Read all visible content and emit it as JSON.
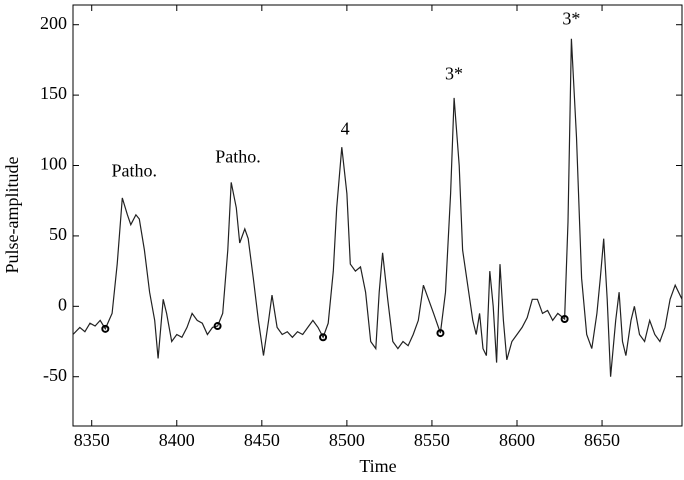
{
  "chart_data": {
    "type": "line",
    "xlabel": "Time",
    "ylabel": "Pulse-amplitude",
    "x": [
      8339,
      8343,
      8346,
      8349,
      8352,
      8355,
      8358,
      8362,
      8365,
      8368,
      8371,
      8373,
      8376,
      8378,
      8381,
      8384,
      8387,
      8389,
      8392,
      8394,
      8397,
      8400,
      8403,
      8406,
      8409,
      8412,
      8415,
      8418,
      8421,
      8424,
      8427,
      8430,
      8432,
      8435,
      8437,
      8440,
      8442,
      8445,
      8448,
      8451,
      8454,
      8456,
      8459,
      8462,
      8465,
      8468,
      8471,
      8474,
      8477,
      8480,
      8483,
      8486,
      8489,
      8492,
      8494,
      8497,
      8500,
      8502,
      8505,
      8508,
      8511,
      8514,
      8517,
      8519,
      8521,
      8524,
      8527,
      8530,
      8533,
      8536,
      8539,
      8542,
      8545,
      8548,
      8551,
      8555,
      8558,
      8561,
      8563,
      8566,
      8568,
      8571,
      8574,
      8576,
      8578,
      8580,
      8582,
      8584,
      8586,
      8588,
      8590,
      8592,
      8594,
      8597,
      8600,
      8603,
      8606,
      8609,
      8612,
      8615,
      8618,
      8621,
      8624,
      8628,
      8630,
      8632,
      8635,
      8638,
      8641,
      8644,
      8647,
      8649,
      8651,
      8653,
      8655,
      8658,
      8660,
      8662,
      8664,
      8667,
      8669,
      8672,
      8675,
      8678,
      8681,
      8684,
      8687,
      8690,
      8693,
      8697
    ],
    "series": [
      {
        "color": "#222222",
        "values": [
          -20,
          -15,
          -18,
          -12,
          -14,
          -10,
          -16,
          -5,
          30,
          77,
          65,
          58,
          65,
          62,
          40,
          10,
          -10,
          -37,
          5,
          -5,
          -25,
          -20,
          -22,
          -15,
          -5,
          -10,
          -12,
          -20,
          -15,
          -14,
          -5,
          40,
          88,
          70,
          45,
          55,
          48,
          20,
          -10,
          -35,
          -10,
          8,
          -15,
          -20,
          -18,
          -22,
          -18,
          -20,
          -15,
          -10,
          -15,
          -22,
          -12,
          25,
          70,
          113,
          80,
          30,
          25,
          28,
          10,
          -25,
          -30,
          10,
          38,
          5,
          -25,
          -30,
          -25,
          -28,
          -20,
          -10,
          15,
          5,
          -5,
          -19,
          10,
          80,
          148,
          100,
          40,
          15,
          -10,
          -20,
          -5,
          -30,
          -35,
          25,
          0,
          -40,
          30,
          -10,
          -38,
          -25,
          -20,
          -15,
          -8,
          5,
          5,
          -5,
          -3,
          -10,
          -5,
          -9,
          60,
          190,
          120,
          20,
          -20,
          -30,
          -5,
          20,
          48,
          5,
          -50,
          -10,
          10,
          -25,
          -35,
          -10,
          0,
          -20,
          -25,
          -10,
          -20,
          -25,
          -15,
          5,
          15,
          5
        ]
      }
    ],
    "markers": {
      "x": [
        8358,
        8424,
        8486,
        8555,
        8628
      ],
      "y": [
        -16,
        -14,
        -22,
        -19,
        -9
      ]
    },
    "annotations": [
      {
        "text": "Patho.",
        "x": 8375,
        "y": 95
      },
      {
        "text": "Patho.",
        "x": 8436,
        "y": 105
      },
      {
        "text": "4",
        "x": 8499,
        "y": 125
      },
      {
        "text": "3*",
        "x": 8563,
        "y": 164
      },
      {
        "text": "3*",
        "x": 8632,
        "y": 203
      }
    ],
    "xlim": [
      8339,
      8697
    ],
    "ylim": [
      -85,
      214
    ],
    "xticks": [
      8350,
      8400,
      8450,
      8500,
      8550,
      8600,
      8650
    ],
    "yticks": [
      -50,
      0,
      50,
      100,
      150,
      200
    ],
    "grid": false
  }
}
